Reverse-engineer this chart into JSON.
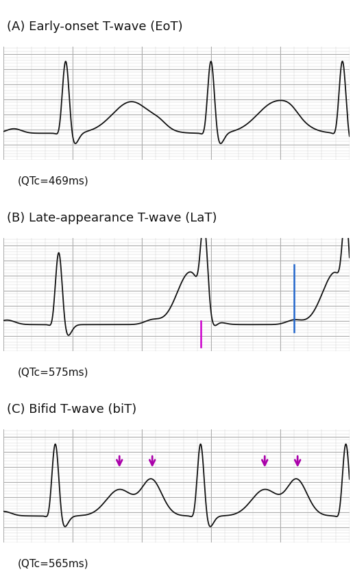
{
  "title_A": "(A) Early-onset T-wave (EoT)",
  "title_B": "(B) Late-appearance T-wave (LaT)",
  "title_C": "(C) Bifid T-wave (biT)",
  "label_A": "(QTc=469ms)",
  "label_B": "(QTc=575ms)",
  "label_C": "(QTc=565ms)",
  "bg_color": "#ffffff",
  "ecg_color": "#111111",
  "grid_major_color": "#aaaaaa",
  "grid_minor_color": "#cccccc",
  "arrow_magenta": "#cc00cc",
  "arrow_blue": "#2266cc",
  "arrow_purple": "#aa00aa",
  "panel_bg_A": "#eeeeee",
  "panel_bg_B": "#cccccc",
  "panel_bg_C": "#dddddd",
  "title_fontsize": 13,
  "label_fontsize": 11
}
